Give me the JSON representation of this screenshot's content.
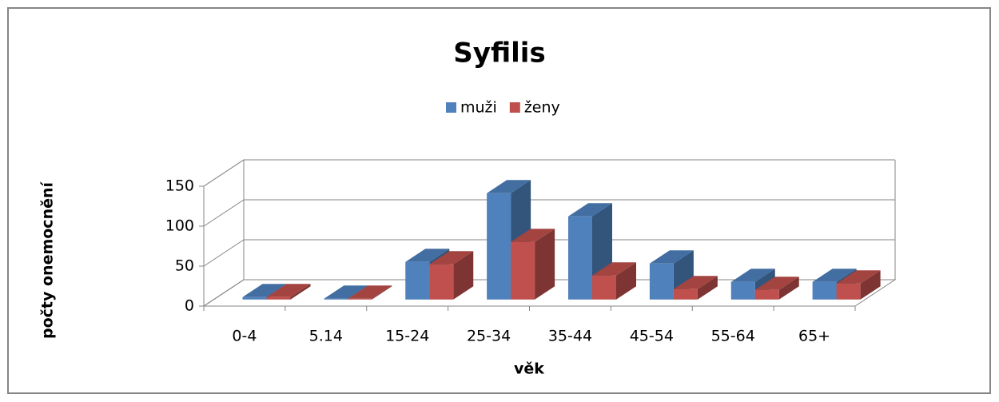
{
  "chart_data": {
    "type": "bar3d",
    "title": "Syfilis",
    "x_label": "věk",
    "y_label": "počty onemocnění",
    "categories": [
      "0-4",
      "5.14",
      "15-24",
      "25-34",
      "35-44",
      "45-54",
      "55-64",
      "65+"
    ],
    "series": [
      {
        "name": "muži",
        "color": "#4f81bd",
        "values": [
          3,
          1,
          47,
          133,
          104,
          45,
          22,
          22
        ]
      },
      {
        "name": "ženy",
        "color": "#c0504d",
        "values": [
          3,
          1,
          44,
          72,
          30,
          13,
          12,
          20
        ]
      }
    ],
    "ylim": [
      0,
      150
    ],
    "yticks": [
      0,
      50,
      100,
      150
    ],
    "grid": true,
    "legend": "top"
  }
}
